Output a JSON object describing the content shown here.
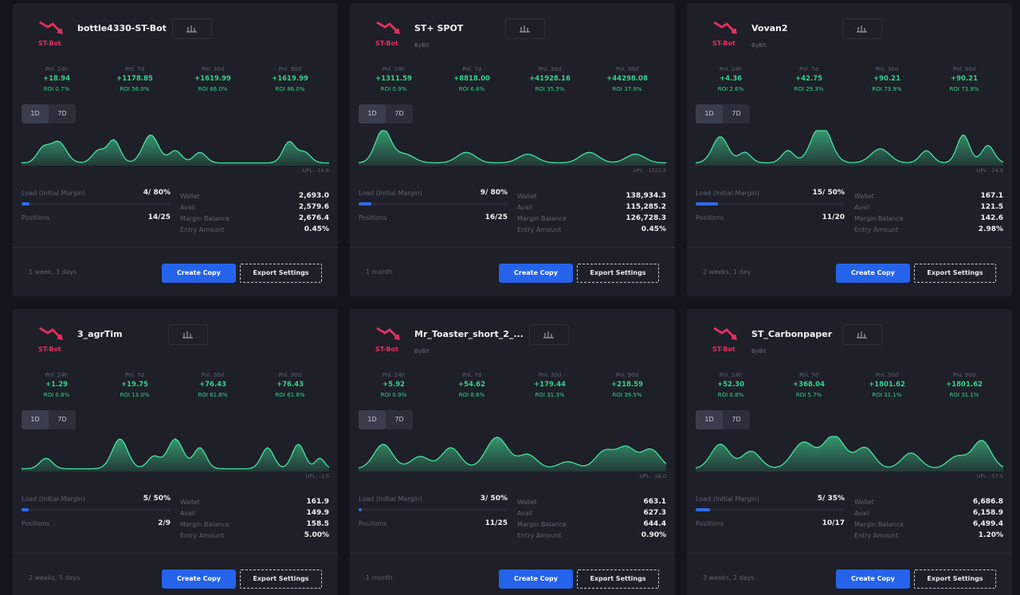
{
  "labels": {
    "logo": "ST-Bot",
    "pnl": [
      "Pnl. 24h",
      "Pnl. 7d",
      "Pnl. 30d",
      "Pnl. 90d"
    ],
    "tabs": [
      "1D",
      "7D"
    ],
    "load": "Load (Initial Margin)",
    "positions": "Positions",
    "balance": [
      "Wallet",
      "Avail",
      "Margin Balance",
      "Entry Amount"
    ],
    "create": "Create Copy",
    "export": "Export Settings"
  },
  "cards": [
    {
      "name": "bottle4330-ST-Bot",
      "pnl": [
        {
          "value": "+18.94",
          "roi": "ROI 0.7%"
        },
        {
          "value": "+1178.85",
          "roi": "ROI 56.0%"
        },
        {
          "value": "+1619.99",
          "roi": "ROI 86.0%"
        },
        {
          "value": "+1619.99",
          "roi": "ROI 86.0%"
        }
      ],
      "upl": "UPL: -16.6",
      "load": "4/ 80%",
      "positions": "14/25",
      "balance": [
        "2,693.0",
        "2,579.6",
        "2,676.4",
        "0.45%"
      ],
      "age": "1 week, 3 days"
    },
    {
      "name": "ST+ SPOT",
      "exchange": "ByBit",
      "pnl": [
        {
          "value": "+1311.59",
          "roi": "ROI 0.9%"
        },
        {
          "value": "+8818.00",
          "roi": "ROI 6.6%"
        },
        {
          "value": "+41928.16",
          "roi": "ROI 35.5%"
        },
        {
          "value": "+44298.08",
          "roi": "ROI 37.9%"
        }
      ],
      "upl": "UPL: -1221.2",
      "load": "9/ 80%",
      "positions": "16/25",
      "balance": [
        "138,934.3",
        "115,285.2",
        "126,728.3",
        "0.45%"
      ],
      "age": "1 month"
    },
    {
      "name": "Vovan2",
      "exchange": "ByBit",
      "pnl": [
        {
          "value": "+4.36",
          "roi": "ROI 2.6%"
        },
        {
          "value": "+42.75",
          "roi": "ROI 29.3%"
        },
        {
          "value": "+90.21",
          "roi": "ROI 73.9%"
        },
        {
          "value": "+90.21",
          "roi": "ROI 73.9%"
        }
      ],
      "upl": "UPL: -24.6",
      "load": "15/ 50%",
      "positions": "11/20",
      "balance": [
        "167.1",
        "121.5",
        "142.6",
        "2.98%"
      ],
      "age": "2 weeks, 1 day"
    },
    {
      "name": "3_agrTim",
      "pnl": [
        {
          "value": "+1.29",
          "roi": "ROI 0.8%"
        },
        {
          "value": "+19.75",
          "roi": "ROI 13.0%"
        },
        {
          "value": "+76.43",
          "roi": "ROI 61.8%"
        },
        {
          "value": "+76.43",
          "roi": "ROI 61.8%"
        }
      ],
      "upl": "UPL: -3.5",
      "load": "5/ 50%",
      "positions": "2/9",
      "balance": [
        "161.9",
        "149.9",
        "158.5",
        "5.00%"
      ],
      "age": "2 weeks, 5 days"
    },
    {
      "name": "Mr_Toaster_short_2_...",
      "exchange": "ByBit",
      "pnl": [
        {
          "value": "+5.92",
          "roi": "ROI 0.9%"
        },
        {
          "value": "+54.62",
          "roi": "ROI 8.6%"
        },
        {
          "value": "+179.44",
          "roi": "ROI 31.3%"
        },
        {
          "value": "+218.59",
          "roi": "ROI 39.5%"
        }
      ],
      "upl": "UPL: -18.0",
      "load": "3/ 50%",
      "positions": "11/25",
      "balance": [
        "663.1",
        "627.3",
        "644.4",
        "0.90%"
      ],
      "age": "1 month"
    },
    {
      "name": "ST_Carbonpaper",
      "exchange": "ByBit",
      "pnl": [
        {
          "value": "+52.30",
          "roi": "ROI 0.8%"
        },
        {
          "value": "+368.04",
          "roi": "ROI 5.7%"
        },
        {
          "value": "+1801.62",
          "roi": "ROI 31.1%"
        },
        {
          "value": "+1801.62",
          "roi": "ROI 31.1%"
        }
      ],
      "upl": "UPL: -57.5",
      "load": "5/ 35%",
      "positions": "10/17",
      "balance": [
        "6,686.8",
        "6,158.9",
        "6,499.4",
        "1.20%"
      ],
      "age": "3 weeks, 2 days"
    }
  ]
}
